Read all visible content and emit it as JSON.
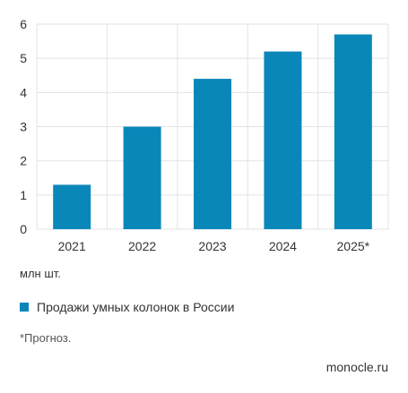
{
  "chart_data": {
    "type": "bar",
    "categories": [
      "2021",
      "2022",
      "2023",
      "2024",
      "2025*"
    ],
    "series": [
      {
        "name": "Продажи умных колонок в России",
        "values": [
          1.3,
          3.0,
          4.4,
          5.2,
          5.7
        ]
      }
    ],
    "yticks": [
      "0",
      "1",
      "2",
      "3",
      "4",
      "5",
      "6"
    ],
    "ylim": [
      0,
      6
    ],
    "grid": true,
    "bar_color": "#0a87b9",
    "grid_color": "#e3e3e3",
    "unit_label": "млн шт.",
    "legend_placement": "bottom-left",
    "footnote": "*Прогноз.",
    "source": "monocle.ru"
  }
}
